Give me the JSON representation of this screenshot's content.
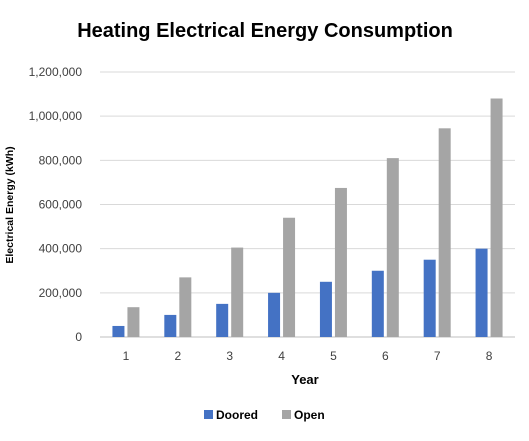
{
  "chart_data": {
    "type": "bar",
    "title": "Heating Electrical Energy Consumption",
    "xlabel": "Year",
    "ylabel": "Electrical Energy (kWh)",
    "categories": [
      "1",
      "2",
      "3",
      "4",
      "5",
      "6",
      "7",
      "8"
    ],
    "series": [
      {
        "name": "Doored",
        "color": "#4472C4",
        "values": [
          50000,
          100000,
          150000,
          200000,
          250000,
          300000,
          350000,
          400000
        ]
      },
      {
        "name": "Open",
        "color": "#A5A5A5",
        "values": [
          135000,
          270000,
          405000,
          540000,
          675000,
          810000,
          945000,
          1080000
        ]
      }
    ],
    "ylim": [
      0,
      1200000
    ],
    "yticks": [
      "0",
      "200,000",
      "400,000",
      "600,000",
      "800,000",
      "1,000,000",
      "1,200,000"
    ],
    "grid": true,
    "legend_position": "bottom"
  }
}
